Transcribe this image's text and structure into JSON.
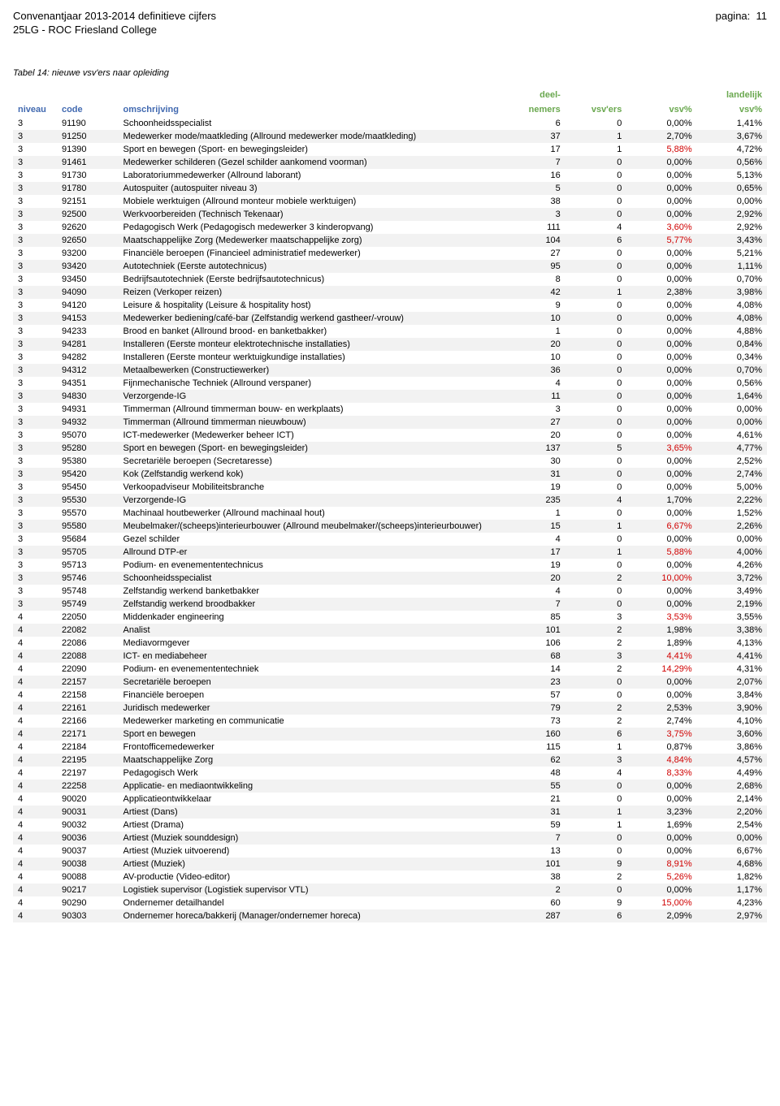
{
  "header": {
    "title": "Convenantjaar 2013-2014 definitieve cijfers",
    "page_label": "pagina:",
    "page_number": "11",
    "subtitle": "25LG - ROC Friesland College"
  },
  "table": {
    "title": "Tabel 14: nieuwe vsv'ers naar opleiding",
    "columns": {
      "niveau": "niveau",
      "code": "code",
      "omschrijving": "omschrijving",
      "deelnemers_top": "deel-",
      "deelnemers_bot": "nemers",
      "vsvers": "vsv'ers",
      "vsvp": "vsv%",
      "landelijk_top": "landelijk",
      "landelijk_bot": "vsv%"
    },
    "highlight_color": "#d00000",
    "alt_row_bg": "#f2f2f2",
    "header_colors": {
      "left": "#4169b0",
      "right": "#6aa84f"
    },
    "rows": [
      {
        "n": "3",
        "c": "91190",
        "o": "Schoonheidsspecialist",
        "d": "6",
        "v": "0",
        "p": "0,00%",
        "l": "1,41%"
      },
      {
        "n": "3",
        "c": "91250",
        "o": "Medewerker mode/maatkleding (Allround medewerker mode/maatkleding)",
        "d": "37",
        "v": "1",
        "p": "2,70%",
        "l": "3,67%"
      },
      {
        "n": "3",
        "c": "91390",
        "o": "Sport en bewegen (Sport- en bewegingsleider)",
        "d": "17",
        "v": "1",
        "p": "5,88%",
        "ph": true,
        "l": "4,72%"
      },
      {
        "n": "3",
        "c": "91461",
        "o": "Medewerker schilderen (Gezel schilder aankomend voorman)",
        "d": "7",
        "v": "0",
        "p": "0,00%",
        "l": "0,56%"
      },
      {
        "n": "3",
        "c": "91730",
        "o": "Laboratoriummedewerker (Allround laborant)",
        "d": "16",
        "v": "0",
        "p": "0,00%",
        "l": "5,13%"
      },
      {
        "n": "3",
        "c": "91780",
        "o": "Autospuiter (autospuiter niveau 3)",
        "d": "5",
        "v": "0",
        "p": "0,00%",
        "l": "0,65%"
      },
      {
        "n": "3",
        "c": "92151",
        "o": "Mobiele werktuigen (Allround monteur mobiele werktuigen)",
        "d": "38",
        "v": "0",
        "p": "0,00%",
        "l": "0,00%"
      },
      {
        "n": "3",
        "c": "92500",
        "o": "Werkvoorbereiden (Technisch Tekenaar)",
        "d": "3",
        "v": "0",
        "p": "0,00%",
        "l": "2,92%"
      },
      {
        "n": "3",
        "c": "92620",
        "o": "Pedagogisch Werk (Pedagogisch medewerker 3 kinderopvang)",
        "d": "111",
        "v": "4",
        "p": "3,60%",
        "ph": true,
        "l": "2,92%"
      },
      {
        "n": "3",
        "c": "92650",
        "o": "Maatschappelijke Zorg (Medewerker maatschappelijke zorg)",
        "d": "104",
        "v": "6",
        "p": "5,77%",
        "ph": true,
        "l": "3,43%"
      },
      {
        "n": "3",
        "c": "93200",
        "o": "Financiële beroepen (Financieel administratief medewerker)",
        "d": "27",
        "v": "0",
        "p": "0,00%",
        "l": "5,21%"
      },
      {
        "n": "3",
        "c": "93420",
        "o": "Autotechniek (Eerste autotechnicus)",
        "d": "95",
        "v": "0",
        "p": "0,00%",
        "l": "1,11%"
      },
      {
        "n": "3",
        "c": "93450",
        "o": "Bedrijfsautotechniek (Eerste bedrijfsautotechnicus)",
        "d": "8",
        "v": "0",
        "p": "0,00%",
        "l": "0,70%"
      },
      {
        "n": "3",
        "c": "94090",
        "o": "Reizen (Verkoper reizen)",
        "d": "42",
        "v": "1",
        "p": "2,38%",
        "l": "3,98%"
      },
      {
        "n": "3",
        "c": "94120",
        "o": "Leisure & hospitality (Leisure & hospitality host)",
        "d": "9",
        "v": "0",
        "p": "0,00%",
        "l": "4,08%"
      },
      {
        "n": "3",
        "c": "94153",
        "o": "Medewerker bediening/café-bar (Zelfstandig werkend gastheer/-vrouw)",
        "d": "10",
        "v": "0",
        "p": "0,00%",
        "l": "4,08%"
      },
      {
        "n": "3",
        "c": "94233",
        "o": "Brood en banket (Allround brood- en banketbakker)",
        "d": "1",
        "v": "0",
        "p": "0,00%",
        "l": "4,88%"
      },
      {
        "n": "3",
        "c": "94281",
        "o": "Installeren (Eerste monteur elektrotechnische installaties)",
        "d": "20",
        "v": "0",
        "p": "0,00%",
        "l": "0,84%"
      },
      {
        "n": "3",
        "c": "94282",
        "o": "Installeren (Eerste monteur werktuigkundige installaties)",
        "d": "10",
        "v": "0",
        "p": "0,00%",
        "l": "0,34%"
      },
      {
        "n": "3",
        "c": "94312",
        "o": "Metaalbewerken (Constructiewerker)",
        "d": "36",
        "v": "0",
        "p": "0,00%",
        "l": "0,70%"
      },
      {
        "n": "3",
        "c": "94351",
        "o": "Fijnmechanische Techniek (Allround verspaner)",
        "d": "4",
        "v": "0",
        "p": "0,00%",
        "l": "0,56%"
      },
      {
        "n": "3",
        "c": "94830",
        "o": "Verzorgende-IG",
        "d": "11",
        "v": "0",
        "p": "0,00%",
        "l": "1,64%"
      },
      {
        "n": "3",
        "c": "94931",
        "o": "Timmerman (Allround timmerman bouw- en werkplaats)",
        "d": "3",
        "v": "0",
        "p": "0,00%",
        "l": "0,00%"
      },
      {
        "n": "3",
        "c": "94932",
        "o": "Timmerman (Allround timmerman nieuwbouw)",
        "d": "27",
        "v": "0",
        "p": "0,00%",
        "l": "0,00%"
      },
      {
        "n": "3",
        "c": "95070",
        "o": "ICT-medewerker (Medewerker beheer ICT)",
        "d": "20",
        "v": "0",
        "p": "0,00%",
        "l": "4,61%"
      },
      {
        "n": "3",
        "c": "95280",
        "o": "Sport en bewegen (Sport- en bewegingsleider)",
        "d": "137",
        "v": "5",
        "p": "3,65%",
        "ph": true,
        "l": "4,77%"
      },
      {
        "n": "3",
        "c": "95380",
        "o": "Secretariële beroepen (Secretaresse)",
        "d": "30",
        "v": "0",
        "p": "0,00%",
        "l": "2,52%"
      },
      {
        "n": "3",
        "c": "95420",
        "o": "Kok (Zelfstandig werkend kok)",
        "d": "31",
        "v": "0",
        "p": "0,00%",
        "l": "2,74%"
      },
      {
        "n": "3",
        "c": "95450",
        "o": "Verkoopadviseur Mobiliteitsbranche",
        "d": "19",
        "v": "0",
        "p": "0,00%",
        "l": "5,00%"
      },
      {
        "n": "3",
        "c": "95530",
        "o": "Verzorgende-IG",
        "d": "235",
        "v": "4",
        "p": "1,70%",
        "l": "2,22%"
      },
      {
        "n": "3",
        "c": "95570",
        "o": "Machinaal houtbewerker (Allround machinaal hout)",
        "d": "1",
        "v": "0",
        "p": "0,00%",
        "l": "1,52%"
      },
      {
        "n": "3",
        "c": "95580",
        "o": "Meubelmaker/(scheeps)interieurbouwer (Allround meubelmaker/(scheeps)interieurbouwer)",
        "d": "15",
        "v": "1",
        "p": "6,67%",
        "ph": true,
        "l": "2,26%"
      },
      {
        "n": "3",
        "c": "95684",
        "o": "Gezel schilder",
        "d": "4",
        "v": "0",
        "p": "0,00%",
        "l": "0,00%"
      },
      {
        "n": "3",
        "c": "95705",
        "o": "Allround DTP-er",
        "d": "17",
        "v": "1",
        "p": "5,88%",
        "ph": true,
        "l": "4,00%"
      },
      {
        "n": "3",
        "c": "95713",
        "o": "Podium- en evenemententechnicus",
        "d": "19",
        "v": "0",
        "p": "0,00%",
        "l": "4,26%"
      },
      {
        "n": "3",
        "c": "95746",
        "o": "Schoonheidsspecialist",
        "d": "20",
        "v": "2",
        "p": "10,00%",
        "ph": true,
        "l": "3,72%"
      },
      {
        "n": "3",
        "c": "95748",
        "o": "Zelfstandig werkend banketbakker",
        "d": "4",
        "v": "0",
        "p": "0,00%",
        "l": "3,49%"
      },
      {
        "n": "3",
        "c": "95749",
        "o": "Zelfstandig werkend broodbakker",
        "d": "7",
        "v": "0",
        "p": "0,00%",
        "l": "2,19%"
      },
      {
        "n": "4",
        "c": "22050",
        "o": "Middenkader engineering",
        "d": "85",
        "v": "3",
        "p": "3,53%",
        "ph": true,
        "l": "3,55%"
      },
      {
        "n": "4",
        "c": "22082",
        "o": "Analist",
        "d": "101",
        "v": "2",
        "p": "1,98%",
        "l": "3,38%"
      },
      {
        "n": "4",
        "c": "22086",
        "o": "Mediavormgever",
        "d": "106",
        "v": "2",
        "p": "1,89%",
        "l": "4,13%"
      },
      {
        "n": "4",
        "c": "22088",
        "o": "ICT- en mediabeheer",
        "d": "68",
        "v": "3",
        "p": "4,41%",
        "ph": true,
        "l": "4,41%"
      },
      {
        "n": "4",
        "c": "22090",
        "o": "Podium- en evenemententechniek",
        "d": "14",
        "v": "2",
        "p": "14,29%",
        "ph": true,
        "l": "4,31%"
      },
      {
        "n": "4",
        "c": "22157",
        "o": "Secretariële beroepen",
        "d": "23",
        "v": "0",
        "p": "0,00%",
        "l": "2,07%"
      },
      {
        "n": "4",
        "c": "22158",
        "o": "Financiële beroepen",
        "d": "57",
        "v": "0",
        "p": "0,00%",
        "l": "3,84%"
      },
      {
        "n": "4",
        "c": "22161",
        "o": "Juridisch medewerker",
        "d": "79",
        "v": "2",
        "p": "2,53%",
        "l": "3,90%"
      },
      {
        "n": "4",
        "c": "22166",
        "o": "Medewerker marketing en communicatie",
        "d": "73",
        "v": "2",
        "p": "2,74%",
        "l": "4,10%"
      },
      {
        "n": "4",
        "c": "22171",
        "o": "Sport en bewegen",
        "d": "160",
        "v": "6",
        "p": "3,75%",
        "ph": true,
        "l": "3,60%"
      },
      {
        "n": "4",
        "c": "22184",
        "o": "Frontofficemedewerker",
        "d": "115",
        "v": "1",
        "p": "0,87%",
        "l": "3,86%"
      },
      {
        "n": "4",
        "c": "22195",
        "o": "Maatschappelijke Zorg",
        "d": "62",
        "v": "3",
        "p": "4,84%",
        "ph": true,
        "l": "4,57%"
      },
      {
        "n": "4",
        "c": "22197",
        "o": "Pedagogisch Werk",
        "d": "48",
        "v": "4",
        "p": "8,33%",
        "ph": true,
        "l": "4,49%"
      },
      {
        "n": "4",
        "c": "22258",
        "o": "Applicatie- en mediaontwikkeling",
        "d": "55",
        "v": "0",
        "p": "0,00%",
        "l": "2,68%"
      },
      {
        "n": "4",
        "c": "90020",
        "o": "Applicatieontwikkelaar",
        "d": "21",
        "v": "0",
        "p": "0,00%",
        "l": "2,14%"
      },
      {
        "n": "4",
        "c": "90031",
        "o": "Artiest (Dans)",
        "d": "31",
        "v": "1",
        "p": "3,23%",
        "l": "2,20%"
      },
      {
        "n": "4",
        "c": "90032",
        "o": "Artiest (Drama)",
        "d": "59",
        "v": "1",
        "p": "1,69%",
        "l": "2,54%"
      },
      {
        "n": "4",
        "c": "90036",
        "o": "Artiest (Muziek sounddesign)",
        "d": "7",
        "v": "0",
        "p": "0,00%",
        "l": "0,00%"
      },
      {
        "n": "4",
        "c": "90037",
        "o": "Artiest (Muziek uitvoerend)",
        "d": "13",
        "v": "0",
        "p": "0,00%",
        "l": "6,67%"
      },
      {
        "n": "4",
        "c": "90038",
        "o": "Artiest (Muziek)",
        "d": "101",
        "v": "9",
        "p": "8,91%",
        "ph": true,
        "l": "4,68%"
      },
      {
        "n": "4",
        "c": "90088",
        "o": "AV-productie (Video-editor)",
        "d": "38",
        "v": "2",
        "p": "5,26%",
        "ph": true,
        "l": "1,82%"
      },
      {
        "n": "4",
        "c": "90217",
        "o": "Logistiek supervisor (Logistiek supervisor VTL)",
        "d": "2",
        "v": "0",
        "p": "0,00%",
        "l": "1,17%"
      },
      {
        "n": "4",
        "c": "90290",
        "o": "Ondernemer detailhandel",
        "d": "60",
        "v": "9",
        "p": "15,00%",
        "ph": true,
        "l": "4,23%"
      },
      {
        "n": "4",
        "c": "90303",
        "o": "Ondernemer horeca/bakkerij (Manager/ondernemer horeca)",
        "d": "287",
        "v": "6",
        "p": "2,09%",
        "l": "2,97%"
      }
    ]
  }
}
